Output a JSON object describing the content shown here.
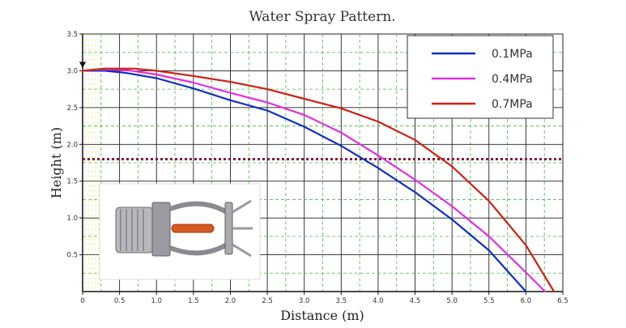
{
  "chart_data": {
    "type": "line",
    "title": "Water Spray Pattern.",
    "xlabel": "Distance (m)",
    "ylabel": "Height (m)",
    "xlim": [
      0,
      6.5
    ],
    "ylim": [
      0,
      3.5
    ],
    "x_ticks": [
      "0",
      "0.5",
      "1.0",
      "1.5",
      "2.0",
      "2.5",
      "3.0",
      "3.5",
      "4.0",
      "4.5",
      "5.0",
      "5.5",
      "6.0",
      "6.5"
    ],
    "y_ticks": [
      "0.5",
      "1.0",
      "1.5",
      "2.0",
      "2.5",
      "3.0",
      "3.5"
    ],
    "grid": true,
    "legend_position": "top-right",
    "reference_line": {
      "y": 1.8,
      "style": "dotted",
      "color": "#8b1a3a"
    },
    "series": [
      {
        "name": "0.1MPa",
        "color": "#1030c0",
        "points": [
          [
            0,
            3.0
          ],
          [
            0.3,
            3.0
          ],
          [
            0.6,
            2.97
          ],
          [
            1.0,
            2.9
          ],
          [
            1.5,
            2.76
          ],
          [
            2.0,
            2.6
          ],
          [
            2.5,
            2.46
          ],
          [
            3.0,
            2.24
          ],
          [
            3.5,
            1.98
          ],
          [
            4.0,
            1.68
          ],
          [
            4.5,
            1.35
          ],
          [
            5.0,
            0.98
          ],
          [
            5.5,
            0.56
          ],
          [
            6.0,
            0.0
          ]
        ]
      },
      {
        "name": "0.4MPa",
        "color": "#e030e0",
        "points": [
          [
            0,
            3.0
          ],
          [
            0.3,
            3.02
          ],
          [
            0.6,
            3.01
          ],
          [
            1.0,
            2.95
          ],
          [
            1.5,
            2.84
          ],
          [
            2.0,
            2.7
          ],
          [
            2.5,
            2.57
          ],
          [
            3.0,
            2.4
          ],
          [
            3.5,
            2.16
          ],
          [
            4.0,
            1.85
          ],
          [
            4.5,
            1.52
          ],
          [
            5.0,
            1.16
          ],
          [
            5.5,
            0.75
          ],
          [
            6.0,
            0.26
          ],
          [
            6.26,
            0.0
          ]
        ]
      },
      {
        "name": "0.7MPa",
        "color": "#d02010",
        "points": [
          [
            0,
            3.0
          ],
          [
            0.3,
            3.03
          ],
          [
            0.7,
            3.03
          ],
          [
            1.0,
            3.0
          ],
          [
            1.5,
            2.93
          ],
          [
            2.0,
            2.85
          ],
          [
            2.5,
            2.75
          ],
          [
            3.0,
            2.62
          ],
          [
            3.5,
            2.49
          ],
          [
            4.0,
            2.31
          ],
          [
            4.5,
            2.06
          ],
          [
            5.0,
            1.7
          ],
          [
            5.5,
            1.23
          ],
          [
            6.0,
            0.63
          ],
          [
            6.38,
            0.0
          ]
        ]
      }
    ]
  },
  "inset_image": {
    "icon": "sprinkler-head-icon"
  }
}
